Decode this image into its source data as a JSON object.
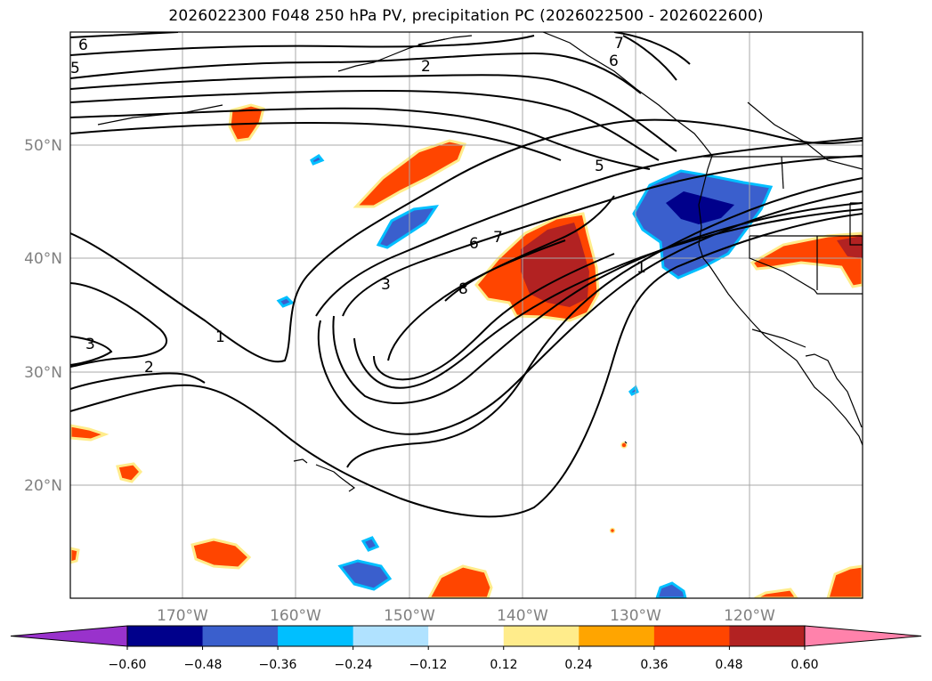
{
  "title": "2026022300 F048 250 hPa PV, precipitation PC (2026022500 - 2026022600)",
  "map": {
    "latitude_labels": [
      "50°N",
      "40°N",
      "30°N",
      "20°N"
    ],
    "longitude_labels": [
      "170°W",
      "160°W",
      "150°W",
      "140°W",
      "130°W",
      "120°W"
    ],
    "pv_contour_labels": [
      "6",
      "5",
      "2",
      "7",
      "6",
      "5",
      "3",
      "1",
      "2",
      "3",
      "6",
      "7",
      "8",
      "1"
    ]
  },
  "colorbar": {
    "tick_labels": [
      "−0.60",
      "−0.48",
      "−0.36",
      "−0.24",
      "−0.12",
      "0.12",
      "0.24",
      "0.36",
      "0.48",
      "0.60"
    ],
    "colors": [
      "#9932cc",
      "#00008b",
      "#3a5fcd",
      "#00bfff",
      "#b0e2ff",
      "#ffffff",
      "#ffec8b",
      "#ffa500",
      "#ff4500",
      "#b22222",
      "#ff82ab"
    ]
  }
}
